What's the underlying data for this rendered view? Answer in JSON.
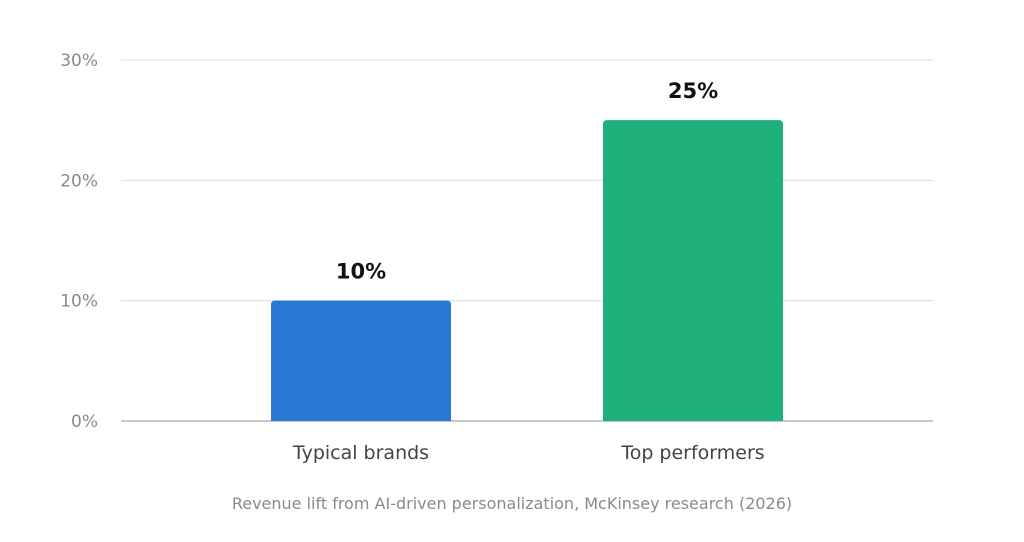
{
  "chart_data": {
    "type": "bar",
    "categories": [
      "Typical brands",
      "Top performers"
    ],
    "values": [
      10,
      25
    ],
    "value_labels": [
      "10%",
      "25%"
    ],
    "colors": [
      "#2a78d6",
      "#1eb07a"
    ],
    "ylim": [
      0,
      30
    ],
    "yticks": [
      0,
      10,
      20,
      30
    ],
    "ytick_labels": [
      "0%",
      "10%",
      "20%",
      "30%"
    ],
    "grid": true,
    "title": "",
    "xlabel": "",
    "ylabel": "",
    "caption": "Revenue lift from AI-driven personalization, McKinsey research (2026)"
  }
}
